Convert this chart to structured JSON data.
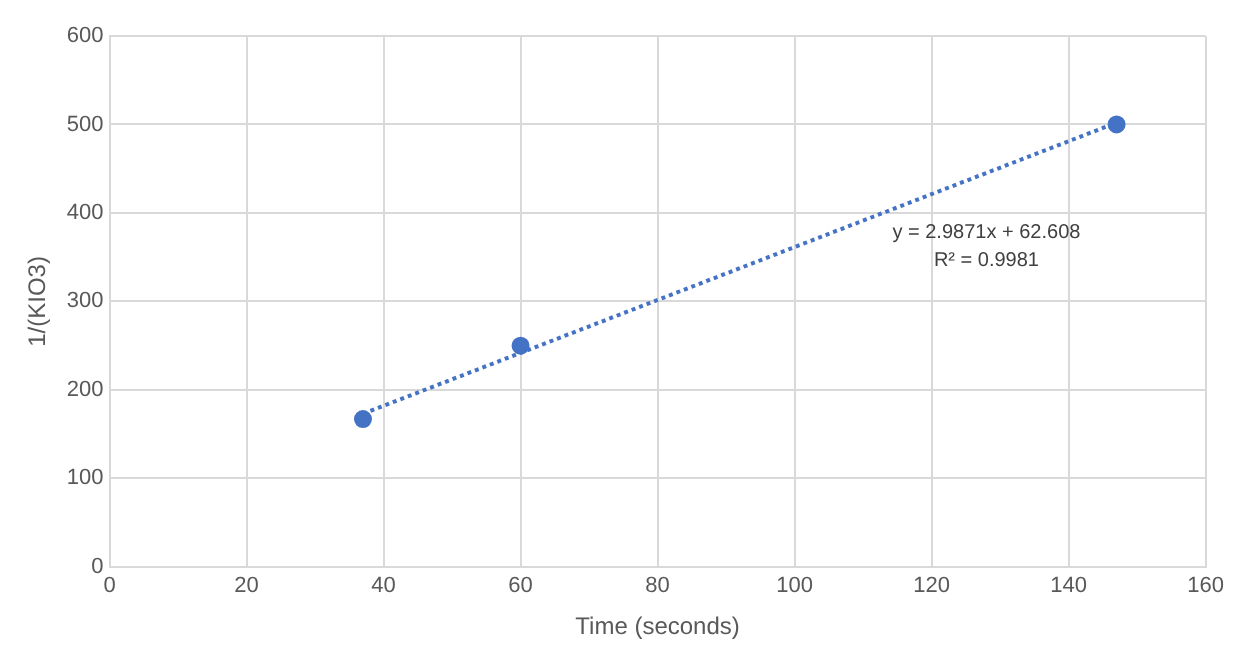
{
  "chart_data": {
    "type": "scatter",
    "xlabel": "Time (seconds)",
    "ylabel": "1/(KIO3)",
    "xlim": [
      0,
      160
    ],
    "xticks": [
      0,
      20,
      40,
      60,
      80,
      100,
      120,
      140,
      160
    ],
    "ylim": [
      0,
      600
    ],
    "yticks": [
      0,
      100,
      200,
      300,
      400,
      500,
      600
    ],
    "grid": true,
    "legend": false,
    "marker": "circle",
    "series": [
      {
        "type": "scatter",
        "color": "#4472c4",
        "x": [
          37,
          60,
          147
        ],
        "values": [
          167,
          250,
          500
        ]
      },
      {
        "type": "line",
        "color": "#4472c4",
        "x": [
          37,
          147
        ],
        "values": [
          173,
          502
        ],
        "marker": "none",
        "line_style": "dotted"
      }
    ],
    "annotations": [
      "y = 2.9871x + 62.608",
      "R² = 0.9981"
    ]
  }
}
